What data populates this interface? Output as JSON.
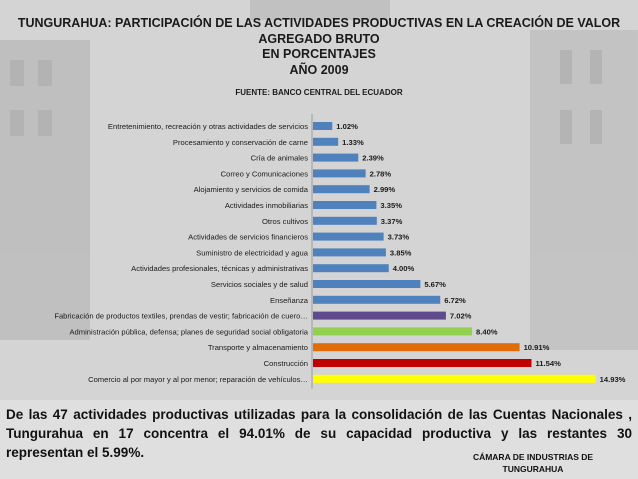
{
  "title_lines": [
    "TUNGURAHUA: PARTICIPACIÓN DE LAS ACTIVIDADES PRODUCTIVAS EN LA CREACIÓN DE VALOR",
    "AGREGADO BRUTO",
    "EN PORCENTAJES",
    "AÑO 2009"
  ],
  "source": "FUENTE: BANCO CENTRAL DEL ECUADOR",
  "note": "De las 47 actividades productivas utilizadas para la consolidación de las Cuentas Nacionales , Tungurahua en 17 concentra el 94.01% de su capacidad productiva y las restantes 30 representan el 5.99%.",
  "chamber_lines": [
    "CÁMARA DE INDUSTRIAS DE",
    "TUNGURAHUA"
  ],
  "chart_data": {
    "type": "bar",
    "orientation": "horizontal",
    "title": "TUNGURAHUA: PARTICIPACIÓN DE LAS ACTIVIDADES PRODUCTIVAS EN LA CREACIÓN DE VALOR AGREGADO BRUTO EN PORCENTAJES AÑO 2009",
    "xlabel": "",
    "ylabel": "",
    "grid": false,
    "legend": "none",
    "xlim": [
      0,
      15
    ],
    "categories": [
      "Entretenimiento, recreación y otras actividades de servicios",
      "Procesamiento y conservación de carne",
      "Cría de animales",
      "Correo y Comunicaciones",
      "Alojamiento y servicios de comida",
      "Actividades inmobiliarias",
      "Otros cultivos",
      "Actividades de servicios financieros",
      "Suministro de electricidad y agua",
      "Actividades profesionales, técnicas y administrativas",
      "Servicios sociales y de salud",
      "Enseñanza",
      "Fabricación de productos textiles, prendas de vestir; fabricación de cuero…",
      "Administración pública, defensa; planes de seguridad social obligatoria",
      "Transporte y almacenamiento",
      "Construcción",
      "Comercio al por mayor y al por menor; reparación de vehículos…"
    ],
    "values": [
      1.02,
      1.33,
      2.39,
      2.78,
      2.99,
      3.35,
      3.37,
      3.73,
      3.85,
      4.0,
      5.67,
      6.72,
      7.02,
      8.4,
      10.91,
      11.54,
      14.93
    ],
    "value_labels": [
      "1.02%",
      "1.33%",
      "2.39%",
      "2.78%",
      "2.99%",
      "3.35%",
      "3.37%",
      "3.73%",
      "3.85%",
      "4.00%",
      "5.67%",
      "6.72%",
      "7.02%",
      "8.40%",
      "10.91%",
      "11.54%",
      "14.93%"
    ],
    "colors": [
      "#4f81bd",
      "#4f81bd",
      "#4f81bd",
      "#4f81bd",
      "#4f81bd",
      "#4f81bd",
      "#4f81bd",
      "#4f81bd",
      "#4f81bd",
      "#4f81bd",
      "#4f81bd",
      "#4f81bd",
      "#5f4b8b",
      "#92d050",
      "#e36c0a",
      "#c00000",
      "#ffff00"
    ]
  }
}
